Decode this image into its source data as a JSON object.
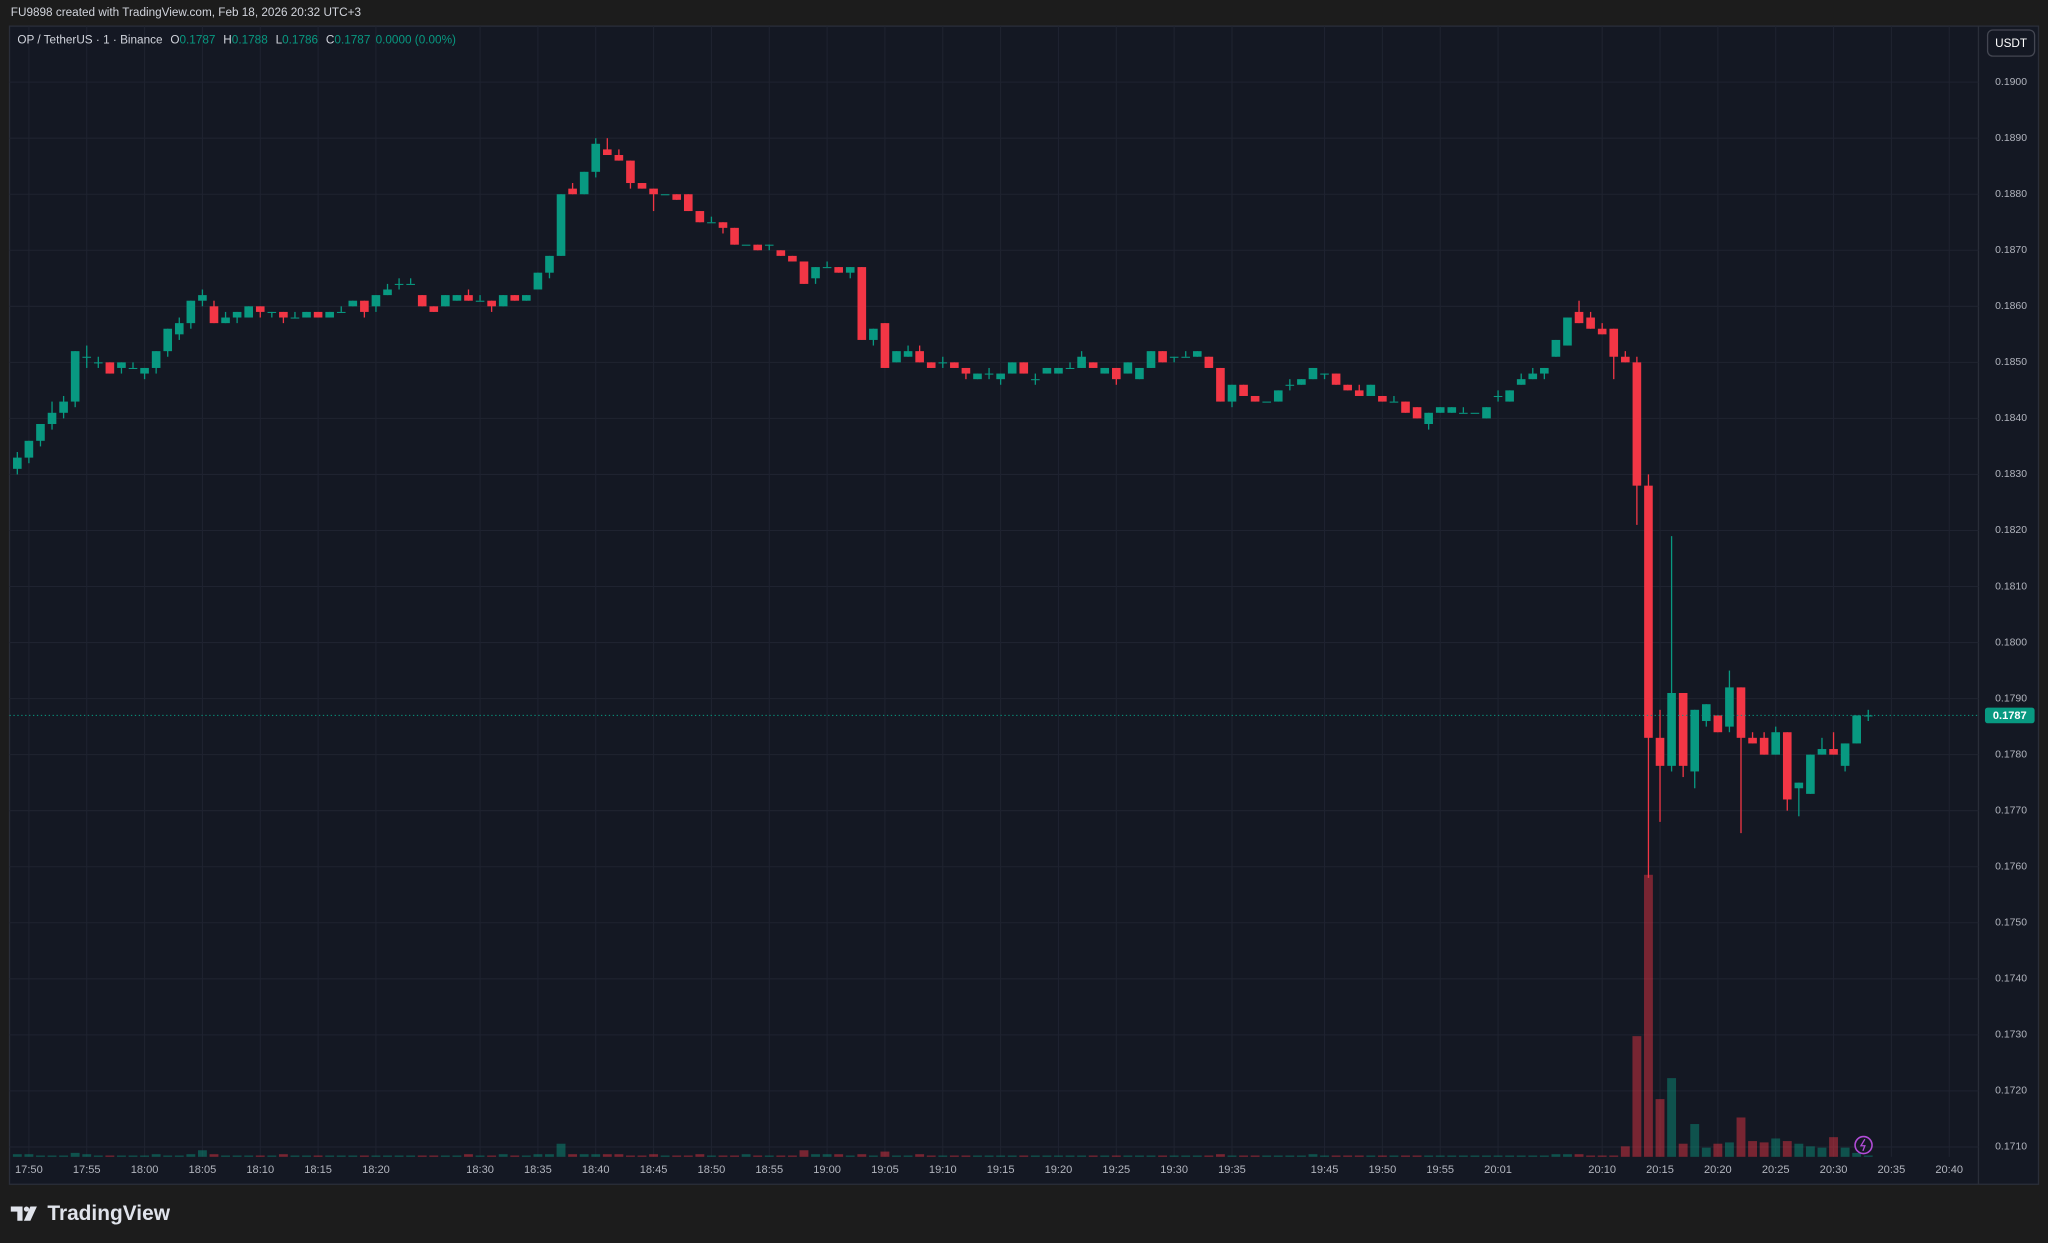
{
  "header": {
    "created": "FU9898 created with TradingView.com, Feb 18, 2026 20:32 UTC+3",
    "brand": "TradingView",
    "currency_button": "USDT"
  },
  "chart_data": {
    "type": "candlestick",
    "title": "OP / TetherUS · 1 · Binance",
    "ohlc_legend": [
      {
        "label": "O",
        "value": "0.1787"
      },
      {
        "label": "H",
        "value": "0.1788"
      },
      {
        "label": "L",
        "value": "0.1786"
      },
      {
        "label": "C",
        "value": "0.1787"
      }
    ],
    "change": "0.0000 (0.00%)",
    "up_color": "#089981",
    "down_color": "#f23645",
    "grid": true,
    "ylim": [
      0.1708,
      0.191
    ],
    "yticks": [
      {
        "value": 0.171,
        "label": "0.1710"
      },
      {
        "value": 0.172,
        "label": "0.1720"
      },
      {
        "value": 0.173,
        "label": "0.1730"
      },
      {
        "value": 0.174,
        "label": "0.1740"
      },
      {
        "value": 0.175,
        "label": "0.1750"
      },
      {
        "value": 0.176,
        "label": "0.1760"
      },
      {
        "value": 0.177,
        "label": "0.1770"
      },
      {
        "value": 0.178,
        "label": "0.1780"
      },
      {
        "value": 0.179,
        "label": "0.1790"
      },
      {
        "value": 0.18,
        "label": "0.1800"
      },
      {
        "value": 0.181,
        "label": "0.1810"
      },
      {
        "value": 0.182,
        "label": "0.1820"
      },
      {
        "value": 0.183,
        "label": "0.1830"
      },
      {
        "value": 0.184,
        "label": "0.1840"
      },
      {
        "value": 0.185,
        "label": "0.1850"
      },
      {
        "value": 0.186,
        "label": "0.1860"
      },
      {
        "value": 0.187,
        "label": "0.1870"
      },
      {
        "value": 0.188,
        "label": "0.1880"
      },
      {
        "value": 0.189,
        "label": "0.1890"
      },
      {
        "value": 0.19,
        "label": "0.1900"
      }
    ],
    "last_price": {
      "value": 0.1787,
      "label": "0.1787"
    },
    "categories": [
      null,
      "17:50",
      null,
      null,
      null,
      null,
      "17:55",
      null,
      null,
      null,
      null,
      "18:00",
      null,
      null,
      null,
      null,
      "18:05",
      null,
      null,
      null,
      null,
      "18:10",
      null,
      null,
      null,
      null,
      "18:15",
      null,
      null,
      null,
      null,
      "18:20",
      null,
      null,
      null,
      null,
      null,
      null,
      null,
      null,
      "18:30",
      null,
      null,
      null,
      null,
      "18:35",
      null,
      null,
      null,
      null,
      "18:40",
      null,
      null,
      null,
      null,
      "18:45",
      null,
      null,
      null,
      null,
      "18:50",
      null,
      null,
      null,
      null,
      "18:55",
      null,
      null,
      null,
      null,
      "19:00",
      null,
      null,
      null,
      null,
      "19:05",
      null,
      null,
      null,
      null,
      "19:10",
      null,
      null,
      null,
      null,
      "19:15",
      null,
      null,
      null,
      null,
      "19:20",
      null,
      null,
      null,
      null,
      "19:25",
      null,
      null,
      null,
      null,
      "19:30",
      null,
      null,
      null,
      null,
      "19:35",
      null,
      null,
      null,
      null,
      null,
      null,
      null,
      "19:45",
      null,
      null,
      null,
      null,
      "19:50",
      null,
      null,
      null,
      null,
      "19:55",
      null,
      null,
      null,
      null,
      "20:01",
      null,
      null,
      null,
      null,
      null,
      null,
      null,
      null,
      "20:10",
      null,
      null,
      null,
      null,
      "20:15",
      null,
      null,
      null,
      null,
      "20:20",
      null,
      null,
      null,
      null,
      "20:25",
      null,
      null,
      null,
      null,
      "20:30",
      null,
      null,
      null,
      null,
      "20:35",
      null,
      null,
      null,
      null,
      "20:40"
    ],
    "ohlc": [
      [
        0.1831,
        0.1834,
        0.183,
        0.1833
      ],
      [
        0.1833,
        0.1836,
        0.1832,
        0.1836
      ],
      [
        0.1836,
        0.1839,
        0.1835,
        0.1839
      ],
      [
        0.1839,
        0.1843,
        0.1838,
        0.1841
      ],
      [
        0.1841,
        0.1844,
        0.184,
        0.1843
      ],
      [
        0.1843,
        0.1852,
        0.1842,
        0.1852
      ],
      [
        0.1851,
        0.1853,
        0.1849,
        0.1851
      ],
      [
        0.185,
        0.1851,
        0.1849,
        0.185
      ],
      [
        0.185,
        0.185,
        0.1848,
        0.1848
      ],
      [
        0.1849,
        0.185,
        0.1848,
        0.185
      ],
      [
        0.1849,
        0.185,
        0.1849,
        0.1849
      ],
      [
        0.1848,
        0.1849,
        0.1847,
        0.1849
      ],
      [
        0.1849,
        0.1852,
        0.1848,
        0.1852
      ],
      [
        0.1852,
        0.1856,
        0.1851,
        0.1856
      ],
      [
        0.1855,
        0.1858,
        0.1854,
        0.1857
      ],
      [
        0.1857,
        0.1861,
        0.1856,
        0.1861
      ],
      [
        0.1861,
        0.1863,
        0.186,
        0.1862
      ],
      [
        0.186,
        0.1861,
        0.1857,
        0.1857
      ],
      [
        0.1857,
        0.1859,
        0.1857,
        0.1858
      ],
      [
        0.1858,
        0.1859,
        0.1857,
        0.1859
      ],
      [
        0.1858,
        0.186,
        0.1858,
        0.186
      ],
      [
        0.186,
        0.186,
        0.1858,
        0.1859
      ],
      [
        0.1859,
        0.1859,
        0.1858,
        0.1859
      ],
      [
        0.1859,
        0.1859,
        0.1857,
        0.1858
      ],
      [
        0.1858,
        0.1859,
        0.1858,
        0.1858
      ],
      [
        0.1858,
        0.1859,
        0.1858,
        0.1859
      ],
      [
        0.1859,
        0.1859,
        0.1858,
        0.1858
      ],
      [
        0.1858,
        0.1859,
        0.1858,
        0.1859
      ],
      [
        0.1859,
        0.186,
        0.1859,
        0.1859
      ],
      [
        0.186,
        0.1861,
        0.186,
        0.1861
      ],
      [
        0.1861,
        0.1861,
        0.1858,
        0.1859
      ],
      [
        0.186,
        0.1862,
        0.1859,
        0.1862
      ],
      [
        0.1862,
        0.1864,
        0.1862,
        0.1863
      ],
      [
        0.1864,
        0.1865,
        0.1863,
        0.1864
      ],
      [
        0.1864,
        0.1865,
        0.1864,
        0.1864
      ],
      [
        0.1862,
        0.1862,
        0.186,
        0.186
      ],
      [
        0.186,
        0.186,
        0.1859,
        0.1859
      ],
      [
        0.186,
        0.1862,
        0.186,
        0.1862
      ],
      [
        0.1861,
        0.1862,
        0.1861,
        0.1862
      ],
      [
        0.1862,
        0.1863,
        0.1861,
        0.1861
      ],
      [
        0.1861,
        0.1862,
        0.1861,
        0.1861
      ],
      [
        0.1861,
        0.1861,
        0.1859,
        0.186
      ],
      [
        0.186,
        0.1862,
        0.186,
        0.1862
      ],
      [
        0.1862,
        0.1862,
        0.1861,
        0.1861
      ],
      [
        0.1861,
        0.1862,
        0.1861,
        0.1862
      ],
      [
        0.1863,
        0.1866,
        0.1863,
        0.1866
      ],
      [
        0.1866,
        0.1869,
        0.1865,
        0.1869
      ],
      [
        0.1869,
        0.188,
        0.1869,
        0.188
      ],
      [
        0.1881,
        0.1882,
        0.188,
        0.188
      ],
      [
        0.188,
        0.1884,
        0.188,
        0.1884
      ],
      [
        0.1884,
        0.189,
        0.1883,
        0.1889
      ],
      [
        0.1888,
        0.189,
        0.1887,
        0.1887
      ],
      [
        0.1887,
        0.1888,
        0.1886,
        0.1886
      ],
      [
        0.1886,
        0.1886,
        0.1881,
        0.1882
      ],
      [
        0.1882,
        0.1882,
        0.1881,
        0.1881
      ],
      [
        0.1881,
        0.1881,
        0.1877,
        0.188
      ],
      [
        0.188,
        0.188,
        0.188,
        0.188
      ],
      [
        0.188,
        0.188,
        0.1879,
        0.1879
      ],
      [
        0.188,
        0.188,
        0.1877,
        0.1877
      ],
      [
        0.1877,
        0.1877,
        0.1875,
        0.1875
      ],
      [
        0.1875,
        0.1876,
        0.1875,
        0.1875
      ],
      [
        0.1875,
        0.1875,
        0.1873,
        0.1874
      ],
      [
        0.1874,
        0.1874,
        0.1871,
        0.1871
      ],
      [
        0.1871,
        0.1871,
        0.1871,
        0.1871
      ],
      [
        0.1871,
        0.1871,
        0.187,
        0.187
      ],
      [
        0.1871,
        0.1871,
        0.187,
        0.1871
      ],
      [
        0.187,
        0.187,
        0.1869,
        0.1869
      ],
      [
        0.1869,
        0.1869,
        0.1868,
        0.1868
      ],
      [
        0.1868,
        0.1868,
        0.1864,
        0.1864
      ],
      [
        0.1865,
        0.1867,
        0.1864,
        0.1867
      ],
      [
        0.1867,
        0.1868,
        0.1867,
        0.1867
      ],
      [
        0.1867,
        0.1867,
        0.1866,
        0.1866
      ],
      [
        0.1866,
        0.1867,
        0.1865,
        0.1867
      ],
      [
        0.1867,
        0.1867,
        0.1854,
        0.1854
      ],
      [
        0.1854,
        0.1856,
        0.1853,
        0.1856
      ],
      [
        0.1857,
        0.1857,
        0.1849,
        0.1849
      ],
      [
        0.185,
        0.1852,
        0.185,
        0.1852
      ],
      [
        0.1851,
        0.1853,
        0.1851,
        0.1852
      ],
      [
        0.1852,
        0.1853,
        0.185,
        0.185
      ],
      [
        0.185,
        0.185,
        0.1849,
        0.1849
      ],
      [
        0.185,
        0.1851,
        0.1849,
        0.185
      ],
      [
        0.185,
        0.185,
        0.1849,
        0.1849
      ],
      [
        0.1849,
        0.1849,
        0.1847,
        0.1848
      ],
      [
        0.1847,
        0.1848,
        0.1847,
        0.1848
      ],
      [
        0.1848,
        0.1849,
        0.1847,
        0.1848
      ],
      [
        0.1847,
        0.1848,
        0.1846,
        0.1848
      ],
      [
        0.1848,
        0.185,
        0.1848,
        0.185
      ],
      [
        0.185,
        0.185,
        0.1848,
        0.1848
      ],
      [
        0.1847,
        0.1848,
        0.1846,
        0.1847
      ],
      [
        0.1848,
        0.1849,
        0.1848,
        0.1849
      ],
      [
        0.1848,
        0.1849,
        0.1848,
        0.1849
      ],
      [
        0.1849,
        0.185,
        0.1849,
        0.1849
      ],
      [
        0.1849,
        0.1852,
        0.1849,
        0.1851
      ],
      [
        0.185,
        0.185,
        0.1849,
        0.1849
      ],
      [
        0.1848,
        0.1849,
        0.1848,
        0.1849
      ],
      [
        0.1849,
        0.1849,
        0.1846,
        0.1847
      ],
      [
        0.1848,
        0.185,
        0.1848,
        0.185
      ],
      [
        0.1847,
        0.1849,
        0.1847,
        0.1849
      ],
      [
        0.1849,
        0.1852,
        0.1849,
        0.1852
      ],
      [
        0.1852,
        0.1852,
        0.185,
        0.185
      ],
      [
        0.1851,
        0.1851,
        0.185,
        0.1851
      ],
      [
        0.1851,
        0.1852,
        0.1851,
        0.1851
      ],
      [
        0.1851,
        0.1852,
        0.1851,
        0.1852
      ],
      [
        0.1851,
        0.1851,
        0.1849,
        0.1849
      ],
      [
        0.1849,
        0.1849,
        0.1843,
        0.1843
      ],
      [
        0.1843,
        0.1846,
        0.1842,
        0.1846
      ],
      [
        0.1846,
        0.1846,
        0.1844,
        0.1844
      ],
      [
        0.1844,
        0.1844,
        0.1843,
        0.1843
      ],
      [
        0.1843,
        0.1843,
        0.1843,
        0.1843
      ],
      [
        0.1843,
        0.1845,
        0.1843,
        0.1845
      ],
      [
        0.1846,
        0.1847,
        0.1845,
        0.1846
      ],
      [
        0.1846,
        0.1847,
        0.1846,
        0.1847
      ],
      [
        0.1847,
        0.1849,
        0.1847,
        0.1849
      ],
      [
        0.1848,
        0.1848,
        0.1847,
        0.1848
      ],
      [
        0.1848,
        0.1848,
        0.1846,
        0.1846
      ],
      [
        0.1846,
        0.1846,
        0.1845,
        0.1845
      ],
      [
        0.1845,
        0.1846,
        0.1844,
        0.1844
      ],
      [
        0.1844,
        0.1846,
        0.1844,
        0.1846
      ],
      [
        0.1844,
        0.1844,
        0.1843,
        0.1843
      ],
      [
        0.1843,
        0.1844,
        0.1843,
        0.1843
      ],
      [
        0.1843,
        0.1843,
        0.1841,
        0.1841
      ],
      [
        0.1842,
        0.1842,
        0.184,
        0.184
      ],
      [
        0.1839,
        0.1841,
        0.1838,
        0.1841
      ],
      [
        0.1841,
        0.1842,
        0.1841,
        0.1842
      ],
      [
        0.1841,
        0.1842,
        0.1841,
        0.1842
      ],
      [
        0.1841,
        0.1842,
        0.1841,
        0.1841
      ],
      [
        0.1841,
        0.1841,
        0.1841,
        0.1841
      ],
      [
        0.184,
        0.1842,
        0.184,
        0.1842
      ],
      [
        0.1844,
        0.1845,
        0.1843,
        0.1844
      ],
      [
        0.1843,
        0.1845,
        0.1843,
        0.1845
      ],
      [
        0.1846,
        0.1848,
        0.1846,
        0.1847
      ],
      [
        0.1847,
        0.1849,
        0.1847,
        0.1848
      ],
      [
        0.1848,
        0.1849,
        0.1847,
        0.1849
      ],
      [
        0.1851,
        0.1854,
        0.1851,
        0.1854
      ],
      [
        0.1853,
        0.1858,
        0.1853,
        0.1858
      ],
      [
        0.1859,
        0.1861,
        0.1857,
        0.1857
      ],
      [
        0.1858,
        0.1859,
        0.1856,
        0.1856
      ],
      [
        0.1856,
        0.1857,
        0.1855,
        0.1855
      ],
      [
        0.1856,
        0.1856,
        0.1847,
        0.1851
      ],
      [
        0.1851,
        0.1852,
        0.185,
        0.185
      ],
      [
        0.185,
        0.1851,
        0.1821,
        0.1828
      ],
      [
        0.1828,
        0.183,
        0.1758,
        0.1783
      ],
      [
        0.1783,
        0.1788,
        0.1768,
        0.1778
      ],
      [
        0.1778,
        0.1819,
        0.1777,
        0.1791
      ],
      [
        0.1791,
        0.1791,
        0.1776,
        0.1778
      ],
      [
        0.1777,
        0.1788,
        0.1774,
        0.1788
      ],
      [
        0.1786,
        0.1789,
        0.1785,
        0.1789
      ],
      [
        0.1787,
        0.1787,
        0.1784,
        0.1784
      ],
      [
        0.1785,
        0.1795,
        0.1784,
        0.1792
      ],
      [
        0.1792,
        0.1792,
        0.1766,
        0.1783
      ],
      [
        0.1783,
        0.1784,
        0.1782,
        0.1782
      ],
      [
        0.1783,
        0.1784,
        0.178,
        0.178
      ],
      [
        0.178,
        0.1785,
        0.178,
        0.1784
      ],
      [
        0.1784,
        0.1784,
        0.177,
        0.1772
      ],
      [
        0.1774,
        0.1775,
        0.1769,
        0.1775
      ],
      [
        0.1773,
        0.178,
        0.1773,
        0.178
      ],
      [
        0.178,
        0.1783,
        0.178,
        0.1781
      ],
      [
        0.1781,
        0.1784,
        0.178,
        0.178
      ],
      [
        0.1778,
        0.1782,
        0.1777,
        0.1782
      ],
      [
        0.1782,
        0.1787,
        0.1782,
        0.1787
      ],
      [
        0.1787,
        0.1788,
        0.1786,
        0.1787
      ],
      null,
      null,
      null,
      null,
      null,
      null,
      null
    ],
    "volume": [
      2,
      2,
      1,
      1,
      1,
      3,
      2,
      1,
      1,
      1,
      1,
      1,
      2,
      1,
      1,
      2,
      5,
      2,
      1,
      1,
      1,
      1,
      1,
      2,
      1,
      1,
      1,
      1,
      1,
      1,
      1,
      1,
      1,
      1,
      1,
      1,
      1,
      1,
      1,
      2,
      1,
      1,
      2,
      1,
      1,
      2,
      2,
      10,
      2,
      2,
      2,
      2,
      2,
      1,
      1,
      2,
      1,
      1,
      1,
      2,
      1,
      1,
      1,
      2,
      1,
      1,
      1,
      1,
      5,
      2,
      2,
      2,
      1,
      2,
      1,
      4,
      1,
      1,
      2,
      1,
      1,
      1,
      1,
      1,
      1,
      1,
      1,
      1,
      1,
      1,
      1,
      1,
      1,
      1,
      1,
      1,
      1,
      1,
      1,
      1,
      1,
      1,
      1,
      1,
      2,
      1,
      1,
      1,
      1,
      1,
      1,
      1,
      2,
      1,
      1,
      1,
      1,
      1,
      1,
      1,
      1,
      1,
      1,
      1,
      1,
      1,
      1,
      1,
      1,
      1,
      1,
      1,
      1,
      2,
      2,
      2,
      1,
      1,
      1,
      8,
      92,
      215,
      44,
      60,
      10,
      25,
      7,
      10,
      11,
      30,
      12,
      11,
      14,
      12,
      10,
      8,
      7,
      15,
      7,
      3,
      1,
      null,
      null,
      null,
      null,
      null,
      null,
      null
    ]
  }
}
